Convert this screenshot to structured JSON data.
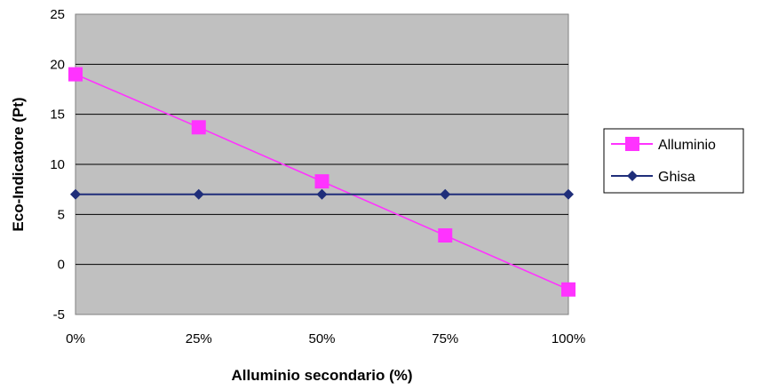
{
  "chart_data": {
    "type": "line",
    "categories": [
      "0%",
      "25%",
      "50%",
      "75%",
      "100%"
    ],
    "series": [
      {
        "name": "Alluminio",
        "values": [
          19,
          13.7,
          8.3,
          2.9,
          -2.5
        ],
        "color": "#ff33ff",
        "marker": "square"
      },
      {
        "name": "Ghisa",
        "values": [
          7,
          7,
          7,
          7,
          7
        ],
        "color": "#1f2e7a",
        "marker": "diamond"
      }
    ],
    "xlabel": "Alluminio secondario (%)",
    "ylabel": "Eco-Indicatore (Pt)",
    "ylim": [
      -5,
      25
    ],
    "yticks": [
      -5,
      0,
      5,
      10,
      15,
      20,
      25
    ],
    "ytick_labels": [
      "-5",
      "0",
      "5",
      "10",
      "15",
      "20",
      "25"
    ],
    "grid": true,
    "plot_background": "#c0c0c0",
    "legend_position": "right"
  }
}
